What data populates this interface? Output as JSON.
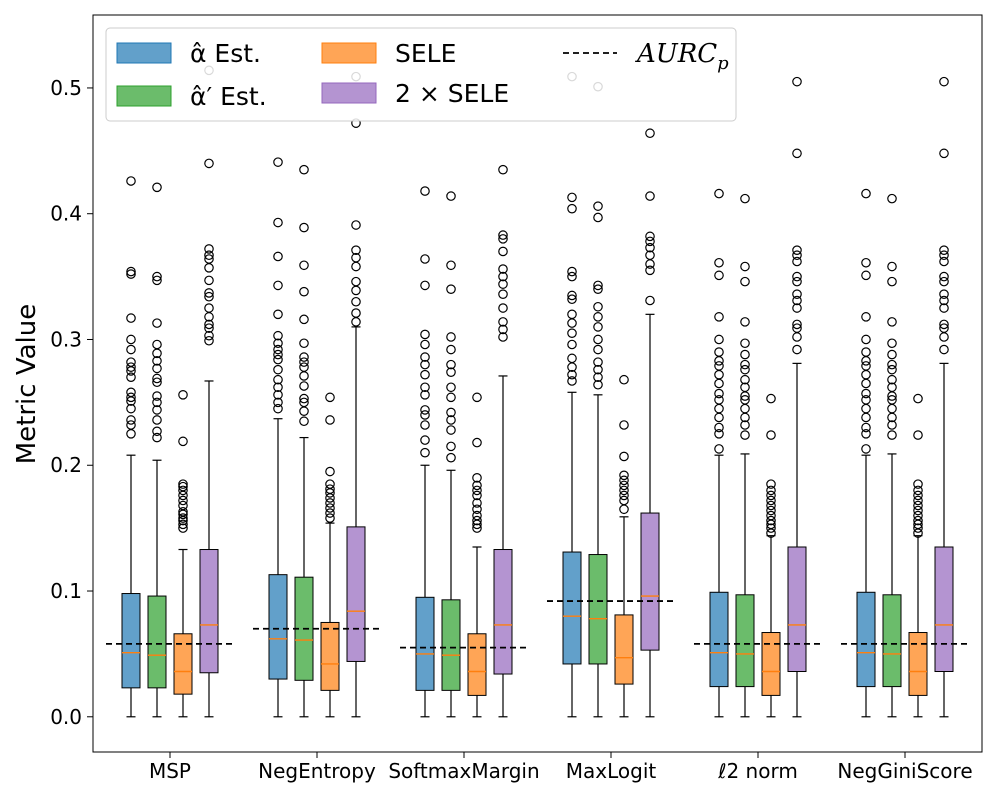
{
  "chart_data": {
    "type": "box",
    "ylabel": "Metric Value",
    "xlabel": "",
    "ylim": [
      -0.028,
      0.558
    ],
    "yticks": [
      0.0,
      0.1,
      0.2,
      0.3,
      0.4,
      0.5
    ],
    "ytick_labels": [
      "0.0",
      "0.1",
      "0.2",
      "0.3",
      "0.4",
      "0.5"
    ],
    "categories": [
      "MSP",
      "NegEntropy",
      "SoftmaxMargin",
      "MaxLogit",
      "ℓ2 norm",
      "NegGiniScore"
    ],
    "legend_position": "top-left",
    "series": [
      {
        "name": "α̂ Est.",
        "color": "#1f77b4"
      },
      {
        "name": "α̂′ Est.",
        "color": "#2ca02c"
      },
      {
        "name": "SELE",
        "color": "#ff7f0e"
      },
      {
        "name": "2 × SELE",
        "color": "#9467bd"
      }
    ],
    "reference_line": {
      "name": "AURC_p",
      "values": [
        0.058,
        0.07,
        0.055,
        0.092,
        0.058,
        0.058
      ]
    },
    "median_color": "#ff7f0e",
    "boxes": [
      [
        {
          "q1": 0.023,
          "median": 0.051,
          "q3": 0.098,
          "whislo": 0.0,
          "whishi": 0.208,
          "fliers": [
            0.225,
            0.232,
            0.236,
            0.245,
            0.251,
            0.254,
            0.258,
            0.27,
            0.275,
            0.278,
            0.282,
            0.292,
            0.3,
            0.317,
            0.352,
            0.354,
            0.426
          ]
        },
        {
          "q1": 0.023,
          "median": 0.049,
          "q3": 0.096,
          "whislo": 0.0,
          "whishi": 0.204,
          "fliers": [
            0.222,
            0.227,
            0.236,
            0.244,
            0.25,
            0.255,
            0.266,
            0.269,
            0.277,
            0.283,
            0.289,
            0.296,
            0.313,
            0.347,
            0.35,
            0.421
          ]
        },
        {
          "q1": 0.018,
          "median": 0.036,
          "q3": 0.066,
          "whislo": 0.0,
          "whishi": 0.133,
          "fliers": [
            0.15,
            0.153,
            0.156,
            0.158,
            0.161,
            0.163,
            0.168,
            0.172,
            0.176,
            0.18,
            0.183,
            0.185,
            0.219,
            0.256
          ]
        },
        {
          "q1": 0.035,
          "median": 0.073,
          "q3": 0.133,
          "whislo": 0.0,
          "whishi": 0.267,
          "fliers": [
            0.299,
            0.303,
            0.309,
            0.312,
            0.318,
            0.325,
            0.334,
            0.337,
            0.347,
            0.357,
            0.364,
            0.367,
            0.372,
            0.44,
            0.514
          ]
        }
      ],
      [
        {
          "q1": 0.03,
          "median": 0.062,
          "q3": 0.113,
          "whislo": 0.0,
          "whishi": 0.237,
          "fliers": [
            0.245,
            0.25,
            0.256,
            0.262,
            0.268,
            0.276,
            0.284,
            0.288,
            0.292,
            0.297,
            0.303,
            0.32,
            0.343,
            0.366,
            0.393,
            0.441
          ]
        },
        {
          "q1": 0.029,
          "median": 0.061,
          "q3": 0.111,
          "whislo": 0.0,
          "whishi": 0.222,
          "fliers": [
            0.235,
            0.243,
            0.25,
            0.253,
            0.263,
            0.271,
            0.278,
            0.282,
            0.286,
            0.297,
            0.316,
            0.338,
            0.359,
            0.389,
            0.435
          ]
        },
        {
          "q1": 0.021,
          "median": 0.042,
          "q3": 0.075,
          "whislo": 0.0,
          "whishi": 0.154,
          "fliers": [
            0.158,
            0.162,
            0.166,
            0.17,
            0.174,
            0.178,
            0.181,
            0.185,
            0.195,
            0.236,
            0.254
          ]
        },
        {
          "q1": 0.044,
          "median": 0.084,
          "q3": 0.151,
          "whislo": 0.0,
          "whishi": 0.31,
          "fliers": [
            0.314,
            0.321,
            0.33,
            0.339,
            0.346,
            0.358,
            0.365,
            0.371,
            0.391,
            0.472,
            0.509
          ]
        }
      ],
      [
        {
          "q1": 0.021,
          "median": 0.05,
          "q3": 0.095,
          "whislo": 0.0,
          "whishi": 0.2,
          "fliers": [
            0.21,
            0.22,
            0.232,
            0.24,
            0.244,
            0.256,
            0.262,
            0.272,
            0.28,
            0.286,
            0.296,
            0.304,
            0.343,
            0.364,
            0.418
          ]
        },
        {
          "q1": 0.021,
          "median": 0.049,
          "q3": 0.093,
          "whislo": 0.0,
          "whishi": 0.196,
          "fliers": [
            0.206,
            0.215,
            0.228,
            0.236,
            0.242,
            0.254,
            0.262,
            0.274,
            0.28,
            0.292,
            0.302,
            0.34,
            0.359,
            0.414
          ]
        },
        {
          "q1": 0.017,
          "median": 0.036,
          "q3": 0.066,
          "whislo": 0.0,
          "whishi": 0.135,
          "fliers": [
            0.15,
            0.153,
            0.156,
            0.16,
            0.165,
            0.17,
            0.176,
            0.18,
            0.184,
            0.19,
            0.218,
            0.254
          ]
        },
        {
          "q1": 0.034,
          "median": 0.073,
          "q3": 0.133,
          "whislo": 0.0,
          "whishi": 0.271,
          "fliers": [
            0.302,
            0.308,
            0.314,
            0.325,
            0.336,
            0.344,
            0.35,
            0.356,
            0.37,
            0.38,
            0.383,
            0.435
          ]
        }
      ],
      [
        {
          "q1": 0.042,
          "median": 0.08,
          "q3": 0.131,
          "whislo": 0.0,
          "whishi": 0.258,
          "fliers": [
            0.267,
            0.272,
            0.278,
            0.285,
            0.296,
            0.305,
            0.313,
            0.32,
            0.332,
            0.335,
            0.35,
            0.354,
            0.404,
            0.413,
            0.509
          ]
        },
        {
          "q1": 0.042,
          "median": 0.078,
          "q3": 0.129,
          "whislo": 0.0,
          "whishi": 0.256,
          "fliers": [
            0.264,
            0.27,
            0.276,
            0.282,
            0.292,
            0.3,
            0.31,
            0.318,
            0.326,
            0.34,
            0.343,
            0.397,
            0.406,
            0.501
          ]
        },
        {
          "q1": 0.026,
          "median": 0.047,
          "q3": 0.081,
          "whislo": 0.0,
          "whishi": 0.159,
          "fliers": [
            0.165,
            0.172,
            0.176,
            0.18,
            0.184,
            0.188,
            0.192,
            0.207,
            0.232,
            0.268
          ]
        },
        {
          "q1": 0.053,
          "median": 0.096,
          "q3": 0.162,
          "whislo": 0.0,
          "whishi": 0.32,
          "fliers": [
            0.331,
            0.355,
            0.36,
            0.367,
            0.373,
            0.378,
            0.382,
            0.414,
            0.464
          ]
        }
      ],
      [
        {
          "q1": 0.024,
          "median": 0.051,
          "q3": 0.099,
          "whislo": 0.0,
          "whishi": 0.208,
          "fliers": [
            0.213,
            0.225,
            0.23,
            0.238,
            0.245,
            0.252,
            0.257,
            0.265,
            0.272,
            0.279,
            0.283,
            0.29,
            0.3,
            0.318,
            0.351,
            0.361,
            0.416
          ]
        },
        {
          "q1": 0.024,
          "median": 0.05,
          "q3": 0.097,
          "whislo": 0.0,
          "whishi": 0.209,
          "fliers": [
            0.224,
            0.232,
            0.238,
            0.245,
            0.252,
            0.255,
            0.262,
            0.268,
            0.276,
            0.28,
            0.288,
            0.297,
            0.314,
            0.346,
            0.358,
            0.412
          ]
        },
        {
          "q1": 0.017,
          "median": 0.036,
          "q3": 0.067,
          "whislo": 0.0,
          "whishi": 0.144,
          "fliers": [
            0.146,
            0.15,
            0.153,
            0.156,
            0.16,
            0.164,
            0.168,
            0.172,
            0.176,
            0.18,
            0.185,
            0.224,
            0.253
          ]
        },
        {
          "q1": 0.036,
          "median": 0.073,
          "q3": 0.135,
          "whislo": 0.0,
          "whishi": 0.281,
          "fliers": [
            0.292,
            0.302,
            0.309,
            0.312,
            0.325,
            0.331,
            0.336,
            0.346,
            0.35,
            0.362,
            0.367,
            0.371,
            0.448,
            0.505
          ]
        }
      ],
      [
        {
          "q1": 0.024,
          "median": 0.051,
          "q3": 0.099,
          "whislo": 0.0,
          "whishi": 0.208,
          "fliers": [
            0.213,
            0.225,
            0.23,
            0.238,
            0.245,
            0.252,
            0.257,
            0.265,
            0.272,
            0.279,
            0.283,
            0.29,
            0.3,
            0.318,
            0.351,
            0.361,
            0.416
          ]
        },
        {
          "q1": 0.024,
          "median": 0.05,
          "q3": 0.097,
          "whislo": 0.0,
          "whishi": 0.209,
          "fliers": [
            0.224,
            0.232,
            0.238,
            0.245,
            0.252,
            0.255,
            0.262,
            0.268,
            0.276,
            0.28,
            0.288,
            0.297,
            0.314,
            0.346,
            0.358,
            0.412
          ]
        },
        {
          "q1": 0.017,
          "median": 0.036,
          "q3": 0.067,
          "whislo": 0.0,
          "whishi": 0.144,
          "fliers": [
            0.146,
            0.15,
            0.153,
            0.156,
            0.16,
            0.164,
            0.168,
            0.172,
            0.176,
            0.18,
            0.185,
            0.224,
            0.253
          ]
        },
        {
          "q1": 0.036,
          "median": 0.073,
          "q3": 0.135,
          "whislo": 0.0,
          "whishi": 0.281,
          "fliers": [
            0.292,
            0.302,
            0.309,
            0.312,
            0.325,
            0.331,
            0.336,
            0.346,
            0.35,
            0.362,
            0.367,
            0.371,
            0.448,
            0.505
          ]
        }
      ]
    ]
  }
}
